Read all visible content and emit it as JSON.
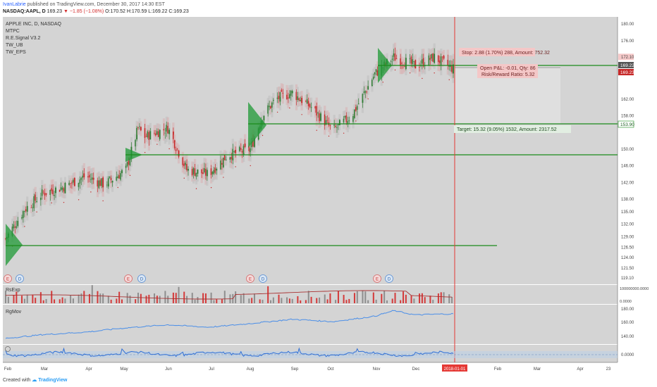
{
  "header": {
    "author": "IvanLabrie",
    "published": "published on TradingView.com, December 30, 2017 14:30 EST",
    "symbol": "NASDAQ:AAPL, D",
    "last": "169.23",
    "change": "−1.85 (−1.08%)",
    "ohlc": "O:170.52 H:170.59 L:169.22 C:169.23"
  },
  "legend": [
    "APPLE INC, D, NASDAQ",
    "MTPC",
    "R.E.Signal V3.2",
    "TW_UB",
    "TW_EPS"
  ],
  "footer": {
    "created_with": "Created with",
    "brand": "TradingView"
  },
  "colors": {
    "panel_bg": "#d4d4d4",
    "up": "#2e7d32",
    "down": "#c62828",
    "level": "#1b8a1b",
    "cursor": "#e53935",
    "volume_ma": "#a83232",
    "line": "#4a8ee8"
  },
  "chart_data": [
    {
      "type": "candlestick",
      "title": "APPLE INC, D, NASDAQ",
      "x": [
        "2017-02-01",
        "2017-02-15",
        "2017-03-01",
        "2017-03-15",
        "2017-04-01",
        "2017-04-15",
        "2017-05-01",
        "2017-05-10",
        "2017-05-15",
        "2017-06-01",
        "2017-06-15",
        "2017-07-01",
        "2017-07-15",
        "2017-08-01",
        "2017-08-10",
        "2017-08-20",
        "2017-09-01",
        "2017-09-15",
        "2017-10-01",
        "2017-10-15",
        "2017-11-01",
        "2017-11-15",
        "2017-12-01",
        "2017-12-15",
        "2017-12-29"
      ],
      "close": [
        128.5,
        135.5,
        139.5,
        140.8,
        143.5,
        141.5,
        145,
        155,
        153,
        155,
        145,
        144,
        148.5,
        150,
        158,
        162,
        163.5,
        160,
        154.5,
        158,
        168,
        172,
        170,
        172,
        169.23
      ],
      "x_ticks": [
        "Feb",
        "Mar",
        "Apr",
        "May",
        "Jun",
        "Jul",
        "Aug",
        "Sep",
        "Oct",
        "Nov",
        "Dec",
        "2018-01-01",
        "Feb",
        "Mar",
        "Apr",
        "23"
      ],
      "y_ticks": [
        "180.00",
        "176.00",
        "172.10",
        "162.00",
        "158.00",
        "153.90",
        "150.00",
        "146.00",
        "142.00",
        "138.00",
        "135.00",
        "132.00",
        "129.00",
        "126.50",
        "124.00",
        "121.50",
        "119.10"
      ],
      "ylim": [
        119.1,
        180
      ],
      "price_labels": {
        "last": "169.22",
        "close": "169.23",
        "stop": "172.10",
        "target": "153.90"
      },
      "levels": [
        146.0,
        153.9,
        169.22,
        125.5
      ],
      "events": [
        "E",
        "D",
        "E",
        "D",
        "E",
        "D",
        "E",
        "D"
      ],
      "position": {
        "stop": "Stop: 2.88 (1.70%) 288, Amount: 752.32",
        "open_pnl": "Open P&L: -0.01, Qty: 86",
        "rr": "Risk/Reward Ratio: 5.32",
        "target": "Target: 15.32 (9.05%) 1532, Amount: 2317.52"
      }
    },
    {
      "type": "bar",
      "title": "RsExp",
      "y_ticks": [
        "100000000.0000",
        "0.0000"
      ]
    },
    {
      "type": "line",
      "title": "RgMov",
      "x": [
        "2017-02-01",
        "2017-03-01",
        "2017-04-01",
        "2017-05-01",
        "2017-06-01",
        "2017-07-01",
        "2017-08-01",
        "2017-09-01",
        "2017-10-01",
        "2017-11-01",
        "2017-11-15",
        "2017-12-01",
        "2017-12-29"
      ],
      "values": [
        131,
        137,
        141,
        148,
        153,
        149,
        155,
        162,
        158,
        167,
        176,
        169,
        171
      ],
      "ylim": [
        125,
        180
      ],
      "y_ticks": [
        "180.00",
        "160.00",
        "140.00"
      ]
    },
    {
      "type": "line",
      "title": "",
      "y_ticks": [
        "0.0000"
      ]
    }
  ]
}
